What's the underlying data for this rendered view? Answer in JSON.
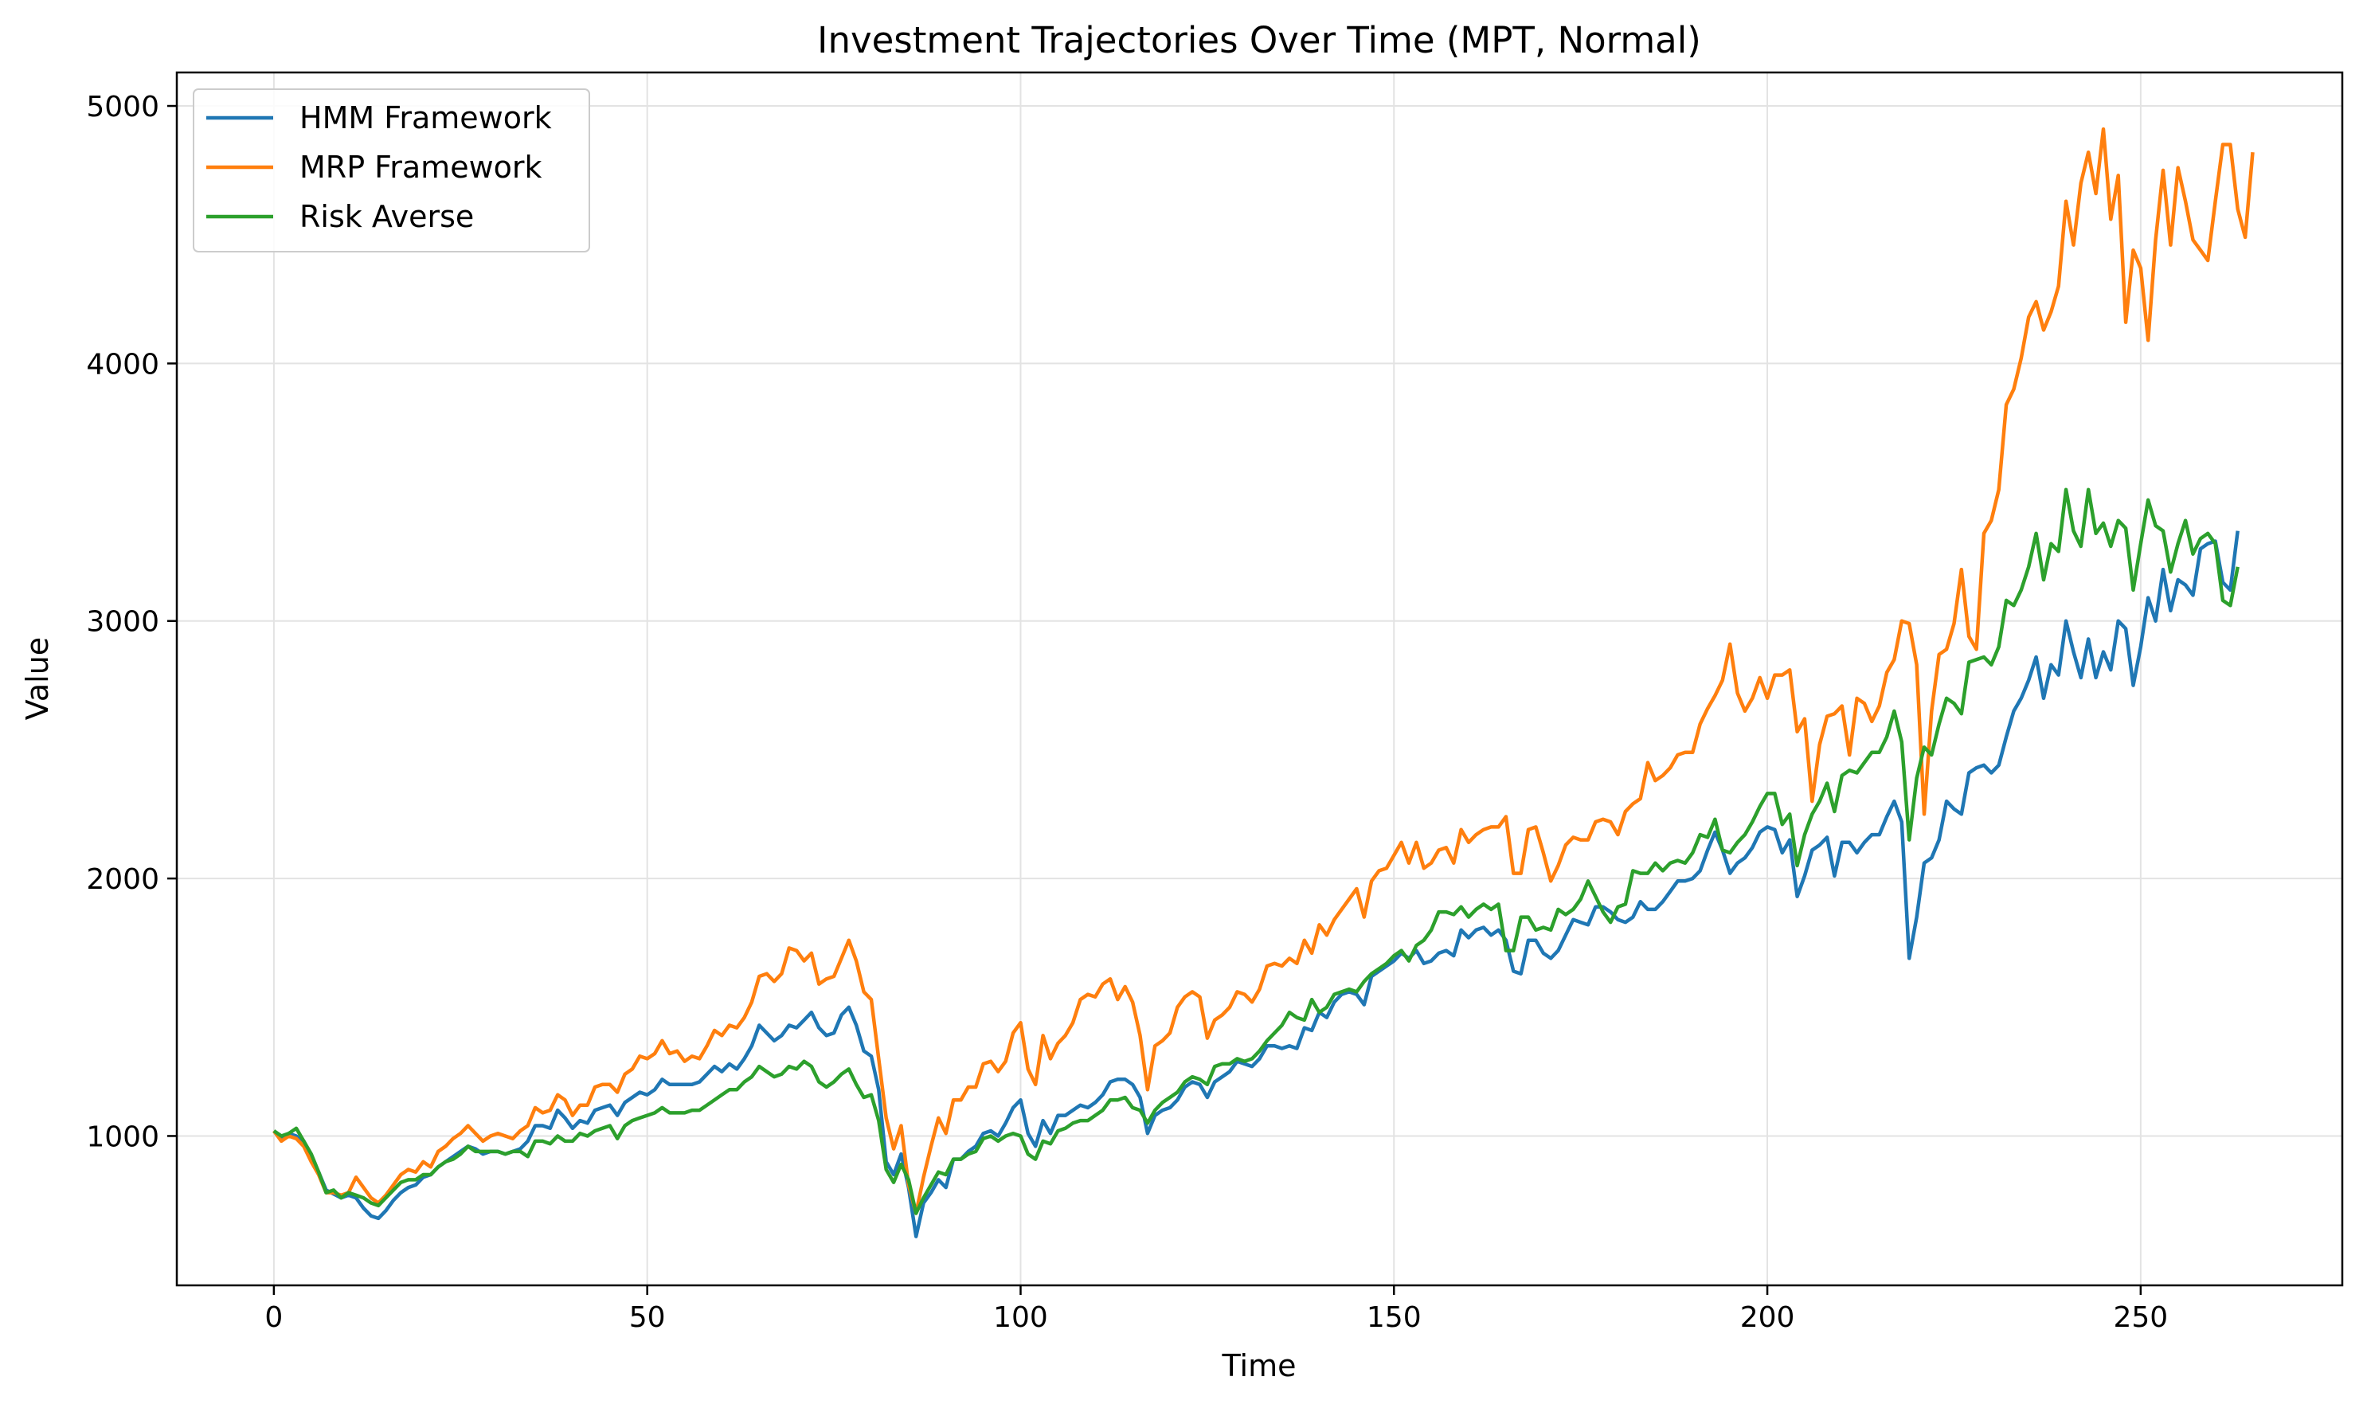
{
  "chart_data": {
    "type": "line",
    "title": "Investment Trajectories Over Time (MPT, Normal)",
    "xlabel": "Time",
    "ylabel": "Value",
    "xlim": [
      -13,
      277
    ],
    "ylim": [
      420,
      5130
    ],
    "xticks": [
      0,
      50,
      100,
      150,
      200,
      250
    ],
    "yticks": [
      1000,
      2000,
      3000,
      4000,
      5000
    ],
    "grid": true,
    "legend_position": "upper-left",
    "x_start": 0,
    "x_step": 1,
    "series": [
      {
        "name": "HMM Framework",
        "color": "#1f77b4",
        "values": [
          1020,
          990,
          1010,
          1000,
          980,
          920,
          860,
          790,
          775,
          760,
          770,
          760,
          720,
          690,
          680,
          710,
          750,
          780,
          800,
          810,
          840,
          850,
          880,
          900,
          920,
          940,
          960,
          950,
          930,
          940,
          940,
          930,
          940,
          950,
          980,
          1040,
          1040,
          1030,
          1100,
          1070,
          1030,
          1060,
          1050,
          1100,
          1110,
          1120,
          1080,
          1130,
          1150,
          1170,
          1160,
          1180,
          1220,
          1200,
          1200,
          1200,
          1200,
          1210,
          1240,
          1270,
          1250,
          1280,
          1260,
          1300,
          1350,
          1430,
          1400,
          1370,
          1390,
          1430,
          1420,
          1450,
          1480,
          1420,
          1390,
          1400,
          1470,
          1500,
          1430,
          1330,
          1310,
          1180,
          900,
          850,
          930,
          800,
          610,
          740,
          780,
          830,
          800,
          910,
          910,
          940,
          960,
          1010,
          1020,
          1000,
          1050,
          1110,
          1140,
          1010,
          960,
          1060,
          1010,
          1080,
          1080,
          1100,
          1120,
          1110,
          1130,
          1160,
          1210,
          1220,
          1220,
          1200,
          1150,
          1010,
          1080,
          1100,
          1110,
          1140,
          1190,
          1210,
          1200,
          1150,
          1210,
          1230,
          1250,
          1290,
          1280,
          1270,
          1300,
          1350,
          1350,
          1340,
          1350,
          1340,
          1420,
          1410,
          1480,
          1460,
          1520,
          1550,
          1560,
          1550,
          1510,
          1620,
          1640,
          1660,
          1680,
          1710,
          1690,
          1720,
          1670,
          1680,
          1710,
          1720,
          1700,
          1800,
          1770,
          1800,
          1810,
          1780,
          1800,
          1760,
          1640,
          1630,
          1760,
          1760,
          1710,
          1690,
          1720,
          1780,
          1840,
          1830,
          1820,
          1890,
          1890,
          1870,
          1840,
          1830,
          1850,
          1910,
          1880,
          1880,
          1910,
          1950,
          1990,
          1990,
          2000,
          2030,
          2110,
          2180,
          2110,
          2020,
          2060,
          2080,
          2120,
          2180,
          2200,
          2190,
          2100,
          2150,
          1930,
          2010,
          2110,
          2130,
          2160,
          2010,
          2140,
          2140,
          2100,
          2140,
          2170,
          2170,
          2240,
          2300,
          2220,
          1690,
          1850,
          2060,
          2080,
          2150,
          2300,
          2270,
          2250,
          2410,
          2430,
          2440,
          2410,
          2440,
          2550,
          2650,
          2700,
          2770,
          2860,
          2700,
          2830,
          2790,
          3000,
          2880,
          2780,
          2930,
          2780,
          2880,
          2810,
          3000,
          2970,
          2750,
          2900,
          3090,
          3000,
          3200,
          3040,
          3160,
          3140,
          3100,
          3280,
          3300,
          3310,
          3150,
          3120,
          3350
        ]
      },
      {
        "name": "MRP Framework",
        "color": "#ff7f0e",
        "values": [
          1020,
          980,
          1000,
          990,
          960,
          900,
          850,
          780,
          780,
          770,
          780,
          840,
          800,
          760,
          740,
          770,
          810,
          850,
          870,
          860,
          900,
          880,
          940,
          960,
          990,
          1010,
          1040,
          1010,
          980,
          1000,
          1010,
          1000,
          990,
          1020,
          1040,
          1110,
          1090,
          1100,
          1160,
          1140,
          1080,
          1120,
          1120,
          1190,
          1200,
          1200,
          1170,
          1240,
          1260,
          1310,
          1300,
          1320,
          1370,
          1320,
          1330,
          1290,
          1310,
          1300,
          1350,
          1410,
          1390,
          1430,
          1420,
          1460,
          1520,
          1620,
          1630,
          1600,
          1630,
          1730,
          1720,
          1680,
          1710,
          1590,
          1610,
          1620,
          1690,
          1760,
          1680,
          1560,
          1530,
          1300,
          1070,
          950,
          1040,
          810,
          700,
          840,
          960,
          1070,
          1010,
          1140,
          1140,
          1190,
          1190,
          1280,
          1290,
          1250,
          1290,
          1400,
          1440,
          1260,
          1200,
          1390,
          1300,
          1360,
          1390,
          1440,
          1530,
          1550,
          1540,
          1590,
          1610,
          1530,
          1580,
          1520,
          1390,
          1180,
          1350,
          1370,
          1400,
          1500,
          1540,
          1560,
          1540,
          1380,
          1450,
          1470,
          1500,
          1560,
          1550,
          1520,
          1570,
          1660,
          1670,
          1660,
          1690,
          1670,
          1760,
          1710,
          1820,
          1780,
          1840,
          1880,
          1920,
          1960,
          1850,
          1990,
          2030,
          2040,
          2090,
          2140,
          2060,
          2140,
          2040,
          2060,
          2110,
          2120,
          2060,
          2190,
          2140,
          2170,
          2190,
          2200,
          2200,
          2240,
          2020,
          2020,
          2190,
          2200,
          2100,
          1990,
          2050,
          2130,
          2160,
          2150,
          2150,
          2220,
          2230,
          2220,
          2170,
          2260,
          2290,
          2310,
          2450,
          2380,
          2400,
          2430,
          2480,
          2490,
          2490,
          2600,
          2660,
          2710,
          2770,
          2910,
          2720,
          2650,
          2700,
          2780,
          2700,
          2790,
          2790,
          2810,
          2570,
          2620,
          2300,
          2520,
          2630,
          2640,
          2670,
          2480,
          2700,
          2680,
          2610,
          2670,
          2800,
          2850,
          3000,
          2990,
          2830,
          2250,
          2650,
          2870,
          2890,
          2990,
          3200,
          2940,
          2890,
          3340,
          3390,
          3510,
          3840,
          3900,
          4020,
          4180,
          4240,
          4130,
          4200,
          4300,
          4630,
          4460,
          4700,
          4820,
          4660,
          4910,
          4560,
          4730,
          4160,
          4440,
          4370,
          4090,
          4480,
          4750,
          4460,
          4760,
          4630,
          4480,
          4440,
          4400,
          4630,
          4850,
          4850,
          4600,
          4490,
          4820
        ]
      },
      {
        "name": "Risk Averse",
        "color": "#2ca02c",
        "values": [
          1020,
          1000,
          1010,
          1030,
          980,
          930,
          860,
          780,
          790,
          760,
          780,
          770,
          760,
          740,
          730,
          760,
          790,
          820,
          830,
          830,
          850,
          850,
          880,
          900,
          910,
          930,
          960,
          940,
          940,
          940,
          940,
          930,
          940,
          940,
          920,
          980,
          980,
          970,
          1000,
          980,
          980,
          1010,
          1000,
          1020,
          1030,
          1040,
          990,
          1040,
          1060,
          1070,
          1080,
          1090,
          1110,
          1090,
          1090,
          1090,
          1100,
          1100,
          1120,
          1140,
          1160,
          1180,
          1180,
          1210,
          1230,
          1270,
          1250,
          1230,
          1240,
          1270,
          1260,
          1290,
          1270,
          1210,
          1190,
          1210,
          1240,
          1260,
          1200,
          1150,
          1160,
          1060,
          870,
          820,
          890,
          830,
          700,
          760,
          810,
          860,
          850,
          910,
          910,
          930,
          940,
          990,
          1000,
          980,
          1000,
          1010,
          1000,
          930,
          910,
          980,
          970,
          1020,
          1030,
          1050,
          1060,
          1060,
          1080,
          1100,
          1140,
          1140,
          1150,
          1110,
          1100,
          1050,
          1100,
          1130,
          1150,
          1170,
          1210,
          1230,
          1220,
          1200,
          1270,
          1280,
          1280,
          1300,
          1290,
          1300,
          1330,
          1370,
          1400,
          1430,
          1480,
          1460,
          1450,
          1530,
          1480,
          1500,
          1550,
          1560,
          1570,
          1560,
          1600,
          1630,
          1650,
          1670,
          1700,
          1720,
          1680,
          1740,
          1760,
          1800,
          1870,
          1870,
          1860,
          1890,
          1850,
          1880,
          1900,
          1880,
          1900,
          1720,
          1720,
          1850,
          1850,
          1800,
          1810,
          1800,
          1880,
          1860,
          1880,
          1920,
          1990,
          1930,
          1870,
          1830,
          1890,
          1900,
          2030,
          2020,
          2020,
          2060,
          2030,
          2060,
          2070,
          2060,
          2100,
          2170,
          2160,
          2230,
          2110,
          2100,
          2140,
          2170,
          2220,
          2280,
          2330,
          2330,
          2210,
          2250,
          2050,
          2170,
          2250,
          2300,
          2370,
          2260,
          2400,
          2420,
          2410,
          2450,
          2490,
          2490,
          2550,
          2650,
          2530,
          2150,
          2390,
          2510,
          2480,
          2600,
          2700,
          2680,
          2640,
          2840,
          2850,
          2860,
          2830,
          2900,
          3080,
          3060,
          3120,
          3210,
          3340,
          3160,
          3300,
          3270,
          3510,
          3350,
          3290,
          3510,
          3340,
          3380,
          3290,
          3390,
          3360,
          3120,
          3300,
          3470,
          3370,
          3350,
          3190,
          3300,
          3390,
          3260,
          3320,
          3340,
          3300,
          3080,
          3060,
          3210
        ]
      }
    ]
  }
}
